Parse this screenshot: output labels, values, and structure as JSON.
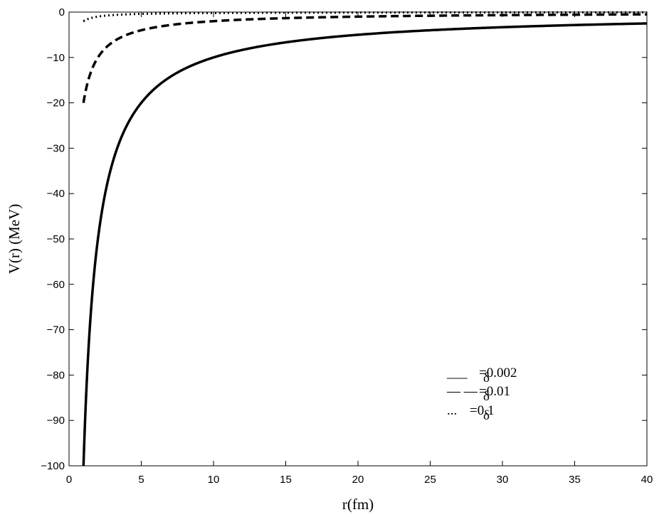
{
  "chart_data": {
    "type": "line",
    "title": "",
    "xlabel": "r(fm)",
    "ylabel": "V(r) (MeV)",
    "xlim": [
      0,
      40
    ],
    "ylim": [
      -100,
      0
    ],
    "xticks": [
      0,
      5,
      10,
      15,
      20,
      25,
      30,
      35,
      40
    ],
    "yticks": [
      0,
      -10,
      -20,
      -30,
      -40,
      -50,
      -60,
      -70,
      -80,
      -90,
      -100
    ],
    "grid": false,
    "legend_position": "lower-right",
    "model": "V(r) = -k/r",
    "series": [
      {
        "label": "δ=0.002",
        "style": "solid",
        "color": "#000000",
        "k": 100,
        "x_range": [
          1,
          40
        ],
        "x": [
          1,
          1.5,
          2,
          3,
          4,
          5,
          6,
          8,
          10,
          15,
          20,
          25,
          30,
          35,
          40
        ],
        "y": [
          -100,
          -66.7,
          -50,
          -33.3,
          -25,
          -20,
          -16.7,
          -12.5,
          -10,
          -6.7,
          -5,
          -4,
          -3.3,
          -2.9,
          -2.5
        ]
      },
      {
        "label": "δ=0.01",
        "style": "dashed",
        "color": "#000000",
        "k": 20,
        "x_range": [
          1,
          40
        ],
        "x": [
          1,
          2,
          3,
          4,
          5,
          10,
          15,
          20,
          25,
          30,
          35,
          40
        ],
        "y": [
          -20,
          -10,
          -6.7,
          -5,
          -4,
          -2,
          -1.3,
          -1,
          -0.8,
          -0.7,
          -0.6,
          -0.5
        ]
      },
      {
        "label": "δ=0.1",
        "style": "dotted",
        "color": "#000000",
        "k": 2,
        "x_range": [
          1,
          40
        ],
        "x": [
          1,
          2,
          3,
          4,
          5,
          10,
          20,
          40
        ],
        "y": [
          -2,
          -1,
          -0.7,
          -0.5,
          -0.4,
          -0.2,
          -0.1,
          -0.05
        ]
      }
    ],
    "legend": {
      "entries": [
        {
          "marker": "___",
          "text": "=0.002",
          "symbol": "δ"
        },
        {
          "marker": "— —",
          "text": "=0.01",
          "symbol": "δ"
        },
        {
          "marker": "...",
          "text": "=0.1",
          "symbol": "δ"
        }
      ]
    }
  }
}
